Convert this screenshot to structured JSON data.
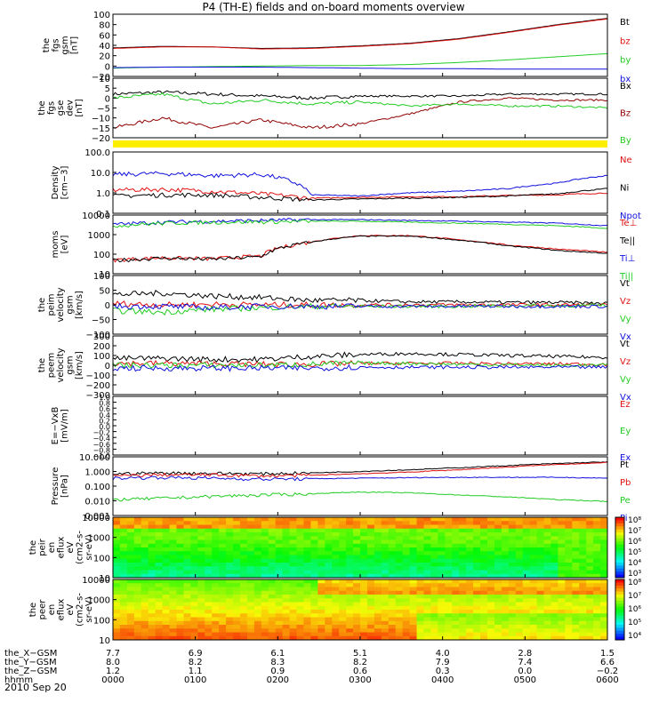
{
  "title": "P4 (TH-E) fields and on-board moments overview",
  "date": "2010 Sep 20",
  "colors": {
    "black": "#000000",
    "red": "#e01010",
    "green": "#22cc22",
    "blue": "#1010dd",
    "darkred": "#900000",
    "bar": "#ffee00"
  },
  "chart_data": [
    {
      "type": "line",
      "panel": "fgs_gsm",
      "ylabel": [
        "the",
        "fgs",
        "gsm",
        "[nT]"
      ],
      "ylim": [
        -20,
        100
      ],
      "ticks": [
        "100",
        "80",
        "60",
        "40",
        "20",
        "0",
        "−20"
      ],
      "series": [
        {
          "name": "Bt",
          "color": "black",
          "y": [
            35,
            38,
            37,
            34,
            35,
            39,
            44,
            53,
            66,
            80,
            92
          ]
        },
        {
          "name": "bz",
          "color": "red",
          "y": [
            34,
            37,
            37,
            33,
            34,
            38,
            43,
            52,
            65,
            79,
            91
          ]
        },
        {
          "name": "by",
          "color": "green",
          "y": [
            -4,
            -2,
            -1,
            0,
            1,
            1,
            3,
            7,
            12,
            18,
            24
          ]
        },
        {
          "name": "bx",
          "color": "blue",
          "y": [
            -3,
            -2,
            -2,
            -2,
            -3,
            -4,
            -5,
            -5,
            -6,
            -6,
            -6
          ]
        }
      ]
    },
    {
      "type": "line",
      "panel": "fgs_dsl_dev",
      "ylabel": [
        "the",
        "fgs",
        "gse",
        "dev",
        "[nT]"
      ],
      "ylim": [
        -20,
        10
      ],
      "ticks": [
        "10",
        "5",
        "0",
        "−5",
        "−10",
        "−15",
        "−20"
      ],
      "series": [
        {
          "name": "Bx",
          "color": "black",
          "y": [
            2,
            3,
            2,
            1,
            0,
            1,
            1,
            1,
            2,
            2,
            2
          ]
        },
        {
          "name": "Bz",
          "color": "darkred",
          "y": [
            -15,
            -10,
            -15,
            -11,
            -15,
            -13,
            -8,
            -2,
            0,
            -1,
            -1
          ]
        },
        {
          "name": "By",
          "color": "green",
          "y": [
            0,
            2,
            -3,
            -1,
            -3,
            -2,
            -4,
            -3,
            -4,
            -4,
            -5
          ]
        }
      ]
    },
    {
      "type": "line",
      "panel": "density",
      "ylabel": [
        "Density",
        "[cm−3]"
      ],
      "yscale": "log",
      "ylim": [
        0.1,
        100
      ],
      "ticks": [
        "100.0",
        "10.0",
        "1.0",
        "0.1"
      ],
      "series": [
        {
          "name": "Ne",
          "color": "red",
          "y": [
            1.4,
            1.5,
            1.2,
            0.9,
            0.55,
            0.6,
            0.65,
            0.65,
            0.75,
            0.8,
            1.0
          ]
        },
        {
          "name": "Ni",
          "color": "black",
          "y": [
            0.7,
            0.8,
            0.8,
            0.6,
            0.45,
            0.5,
            0.55,
            0.6,
            0.7,
            0.9,
            1.6
          ]
        },
        {
          "name": "Npot",
          "color": "blue",
          "y": [
            8,
            9,
            7,
            8,
            0.8,
            0.7,
            1.0,
            1.2,
            1.6,
            3,
            7
          ]
        }
      ]
    },
    {
      "type": "line",
      "panel": "temperature",
      "ylabel": [
        "moms",
        "[eV]"
      ],
      "yscale": "log",
      "ylim": [
        5,
        10000
      ],
      "ticks": [
        "10000",
        "1000",
        "100",
        "10"
      ],
      "series": [
        {
          "name": "Te⊥",
          "color": "red",
          "y": [
            30,
            40,
            35,
            50,
            300,
            700,
            700,
            400,
            200,
            120,
            80
          ]
        },
        {
          "name": "Te||",
          "color": "black",
          "y": [
            28,
            38,
            33,
            45,
            290,
            650,
            650,
            380,
            180,
            100,
            70
          ]
        },
        {
          "name": "Ti⊥",
          "color": "blue",
          "y": [
            3000,
            4000,
            4500,
            5000,
            5500,
            5500,
            5000,
            4500,
            4000,
            3500,
            2500
          ]
        },
        {
          "name": "Ti||",
          "color": "green",
          "y": [
            2500,
            3500,
            4000,
            4200,
            4500,
            4500,
            4000,
            3500,
            3000,
            2500,
            1800
          ]
        }
      ]
    },
    {
      "type": "line",
      "panel": "peim_velocity",
      "ylabel": [
        "the",
        "peim",
        "velocity",
        "gsm",
        "[km/s]"
      ],
      "ylim": [
        -100,
        100
      ],
      "ticks": [
        "100",
        "50",
        "0",
        "−50",
        "−100"
      ],
      "series": [
        {
          "name": "Vt",
          "color": "black",
          "y": [
            35,
            40,
            30,
            25,
            15,
            15,
            10,
            10,
            8,
            8,
            5
          ]
        },
        {
          "name": "Vz",
          "color": "red",
          "y": [
            5,
            0,
            2,
            0,
            0,
            0,
            0,
            0,
            0,
            0,
            0
          ]
        },
        {
          "name": "Vy",
          "color": "green",
          "y": [
            -20,
            -25,
            -15,
            -10,
            -5,
            -5,
            -5,
            -5,
            -3,
            -3,
            -2
          ]
        },
        {
          "name": "Vx",
          "color": "blue",
          "y": [
            -5,
            -5,
            -10,
            -5,
            -5,
            -5,
            -5,
            -5,
            -5,
            -5,
            -5
          ]
        }
      ]
    },
    {
      "type": "line",
      "panel": "peem_velocity",
      "ylabel": [
        "the",
        "peem",
        "velocity",
        "gsm",
        "[km/s]"
      ],
      "ylim": [
        -300,
        300
      ],
      "ticks": [
        "300",
        "200",
        "100",
        "0",
        "−100",
        "−200",
        "−300"
      ],
      "series": [
        {
          "name": "Vt",
          "color": "black",
          "y": [
            70,
            70,
            60,
            60,
            90,
            110,
            120,
            110,
            100,
            90,
            80
          ]
        },
        {
          "name": "Vz",
          "color": "red",
          "y": [
            20,
            20,
            15,
            10,
            10,
            20,
            20,
            20,
            15,
            15,
            10
          ]
        },
        {
          "name": "Vy",
          "color": "green",
          "y": [
            0,
            0,
            0,
            0,
            10,
            20,
            20,
            10,
            5,
            0,
            0
          ]
        },
        {
          "name": "Vx",
          "color": "blue",
          "y": [
            -30,
            -30,
            -30,
            -30,
            -30,
            -20,
            -20,
            -20,
            -20,
            -20,
            -20
          ]
        }
      ]
    },
    {
      "type": "line",
      "panel": "efield",
      "ylabel": [
        "E=−VxB",
        "[mV/m]"
      ],
      "ylim": [
        -1,
        1
      ],
      "ticks": [
        "1.0",
        "0.8",
        "0.6",
        "0.4",
        "0.2",
        "0.0",
        "−0.2",
        "−0.4",
        "−0.6",
        "−0.8",
        "−1.0"
      ],
      "series": [
        {
          "name": "Ez",
          "color": "red",
          "y": []
        },
        {
          "name": "Ey",
          "color": "green",
          "y": []
        },
        {
          "name": "Ex",
          "color": "blue",
          "y": []
        }
      ]
    },
    {
      "type": "line",
      "panel": "pressure",
      "ylabel": [
        "Pressure",
        "[nPa]"
      ],
      "yscale": "log",
      "ylim": [
        0.001,
        10
      ],
      "ticks": [
        "10.000",
        "1.000",
        "0.100",
        "0.010",
        "0.001"
      ],
      "series": [
        {
          "name": "Pt",
          "color": "black",
          "y": [
            0.7,
            0.8,
            0.75,
            0.7,
            0.8,
            1.0,
            1.3,
            1.8,
            2.5,
            3.5,
            4.5
          ]
        },
        {
          "name": "Pb",
          "color": "red",
          "y": [
            0.5,
            0.6,
            0.6,
            0.5,
            0.55,
            0.7,
            0.9,
            1.3,
            2.0,
            3.0,
            4.0
          ]
        },
        {
          "name": "Pe",
          "color": "green",
          "y": [
            0.012,
            0.015,
            0.02,
            0.025,
            0.03,
            0.04,
            0.035,
            0.025,
            0.018,
            0.012,
            0.009
          ]
        },
        {
          "name": "Pi",
          "color": "blue",
          "y": [
            0.35,
            0.4,
            0.35,
            0.3,
            0.32,
            0.35,
            0.38,
            0.4,
            0.4,
            0.4,
            0.35
          ]
        }
      ]
    },
    {
      "type": "heatmap",
      "panel": "peir_energy",
      "ylabel": [
        "the",
        "peir",
        "en",
        "eflux",
        "eV",
        "(cm2-s-",
        "sr-eV)"
      ],
      "yscale": "log",
      "ylim": [
        8,
        20000
      ],
      "ticks": [
        "10000",
        "1000",
        "100",
        "10"
      ],
      "colorbar": [
        "10⁸",
        "10⁷",
        "10⁶",
        "10⁵",
        "10⁴",
        "10³"
      ]
    },
    {
      "type": "heatmap",
      "panel": "peer_energy",
      "ylabel": [
        "the",
        "peer",
        "en",
        "eflux",
        "eV",
        "(cm2-s-",
        "sr-eV)"
      ],
      "yscale": "log",
      "ylim": [
        8,
        20000
      ],
      "ticks": [
        "10000",
        "1000",
        "100",
        "10"
      ],
      "colorbar": [
        "10⁸",
        "10⁷",
        "10⁶",
        "10⁵",
        "10⁴"
      ]
    }
  ],
  "xaxis": {
    "rows": [
      {
        "label": "the_X−GSM",
        "values": [
          "7.7",
          "6.9",
          "6.1",
          "5.1",
          "4.0",
          "2.8",
          "1.5"
        ]
      },
      {
        "label": "the_Y−GSM",
        "values": [
          "8.0",
          "8.2",
          "8.3",
          "8.2",
          "7.9",
          "7.4",
          "6.6"
        ]
      },
      {
        "label": "the_Z−GSM",
        "values": [
          "1.2",
          "1.1",
          "0.9",
          "0.6",
          "0.3",
          "0.0",
          "−0.2"
        ]
      },
      {
        "label": "hhmm",
        "values": [
          "0000",
          "0100",
          "0200",
          "0300",
          "0400",
          "0500",
          "0600"
        ]
      }
    ]
  }
}
